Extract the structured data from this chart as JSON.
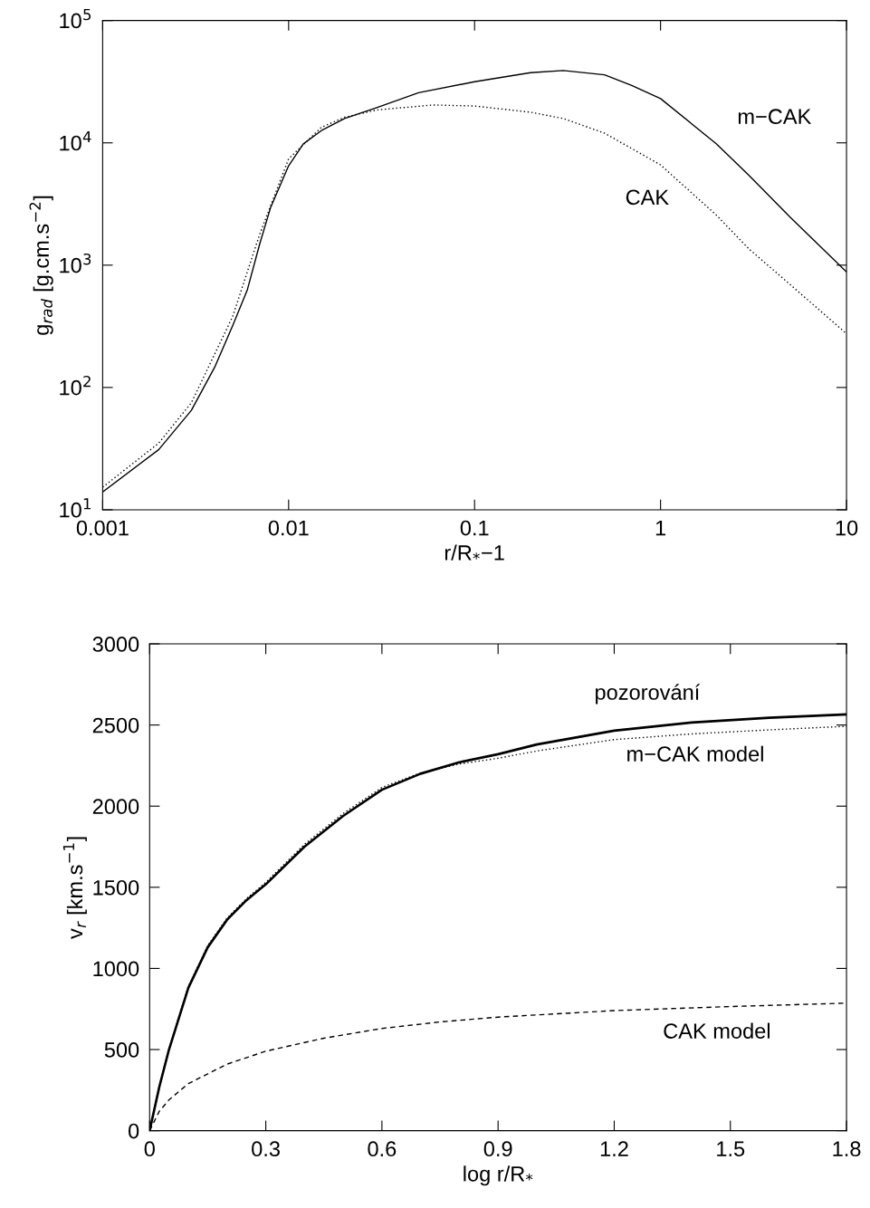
{
  "chart_data": [
    {
      "type": "line",
      "log": "xy",
      "xlabel": "r/R$_{*}$−1",
      "ylabel": "g$_{rad}$ [g.cm.s$^{−2}$]",
      "xlim": [
        0.001,
        10
      ],
      "ylim": [
        10,
        100000
      ],
      "xticks": [
        {
          "value": 0.001,
          "label": "0.001"
        },
        {
          "value": 0.01,
          "label": "0.01"
        },
        {
          "value": 0.1,
          "label": "0.1"
        },
        {
          "value": 1,
          "label": "1"
        },
        {
          "value": 10,
          "label": "10"
        }
      ],
      "yticks": [
        {
          "value": 10,
          "label": "10$^{1}$"
        },
        {
          "value": 100,
          "label": "10$^{2}$"
        },
        {
          "value": 1000,
          "label": "10$^{3}$"
        },
        {
          "value": 10000,
          "label": "10$^{4}$"
        },
        {
          "value": 100000,
          "label": "10$^{5}$"
        }
      ],
      "series": [
        {
          "name": "m−CAK",
          "color": "#000000",
          "line_style": "solid",
          "x": [
            0.001,
            0.002,
            0.003,
            0.004,
            0.005,
            0.006,
            0.007,
            0.008,
            0.01,
            0.012,
            0.015,
            0.02,
            0.03,
            0.05,
            0.1,
            0.2,
            0.3,
            0.5,
            0.7,
            1,
            2,
            3,
            5,
            10
          ],
          "values": [
            14,
            31,
            65,
            146,
            320,
            630,
            1500,
            2960,
            6500,
            9800,
            12600,
            15800,
            19500,
            25700,
            31600,
            37500,
            39000,
            36000,
            29500,
            23000,
            9800,
            5400,
            2450,
            880
          ]
        },
        {
          "name": "CAK",
          "color": "#000000",
          "line_style": "dotted",
          "x": [
            0.001,
            0.002,
            0.003,
            0.005,
            0.007,
            0.01,
            0.015,
            0.02,
            0.03,
            0.06,
            0.1,
            0.2,
            0.3,
            0.5,
            1,
            2,
            3,
            5,
            10
          ],
          "values": [
            15.3,
            35,
            75,
            380,
            1800,
            7400,
            13400,
            16200,
            18600,
            20400,
            20000,
            17800,
            15800,
            12000,
            6600,
            2560,
            1350,
            690,
            275
          ]
        }
      ]
    },
    {
      "type": "line",
      "xlabel": "log r/R$_{*}$",
      "ylabel": "v$_{r}$ [km.s$^{−1}$]",
      "xlim": [
        0,
        1.8
      ],
      "ylim": [
        0,
        3000
      ],
      "xticks": [
        0,
        0.3,
        0.6,
        0.9,
        1.2,
        1.5,
        1.8
      ],
      "yticks": [
        0,
        500,
        1000,
        1500,
        2000,
        2500,
        3000
      ],
      "series": [
        {
          "name": "pozorování",
          "color": "#000000",
          "line_style": "solid",
          "x": [
            0,
            0.025,
            0.05,
            0.1,
            0.15,
            0.2,
            0.25,
            0.3,
            0.4,
            0.5,
            0.6,
            0.7,
            0.8,
            0.9,
            1.0,
            1.2,
            1.4,
            1.6,
            1.8
          ],
          "values": [
            0,
            270,
            500,
            880,
            1130,
            1300,
            1420,
            1518,
            1750,
            1940,
            2101,
            2200,
            2270,
            2320,
            2380,
            2465,
            2515,
            2545,
            2565
          ]
        },
        {
          "name": "m−CAK model",
          "color": "#000000",
          "line_style": "dotted",
          "x": [
            0,
            0.025,
            0.05,
            0.1,
            0.15,
            0.2,
            0.25,
            0.3,
            0.4,
            0.5,
            0.6,
            0.7,
            0.8,
            0.9,
            1.0,
            1.2,
            1.4,
            1.6,
            1.8
          ],
          "values": [
            0,
            275,
            505,
            890,
            1140,
            1310,
            1430,
            1530,
            1765,
            1955,
            2115,
            2205,
            2260,
            2295,
            2340,
            2410,
            2445,
            2470,
            2492
          ]
        },
        {
          "name": "CAK model",
          "color": "#000000",
          "line_style": "dashed",
          "x": [
            0,
            0.025,
            0.05,
            0.1,
            0.2,
            0.3,
            0.45,
            0.6,
            0.75,
            0.9,
            1.2,
            1.5,
            1.8
          ],
          "values": [
            0,
            120,
            190,
            290,
            410,
            490,
            570,
            630,
            670,
            700,
            740,
            765,
            786
          ]
        }
      ]
    }
  ]
}
